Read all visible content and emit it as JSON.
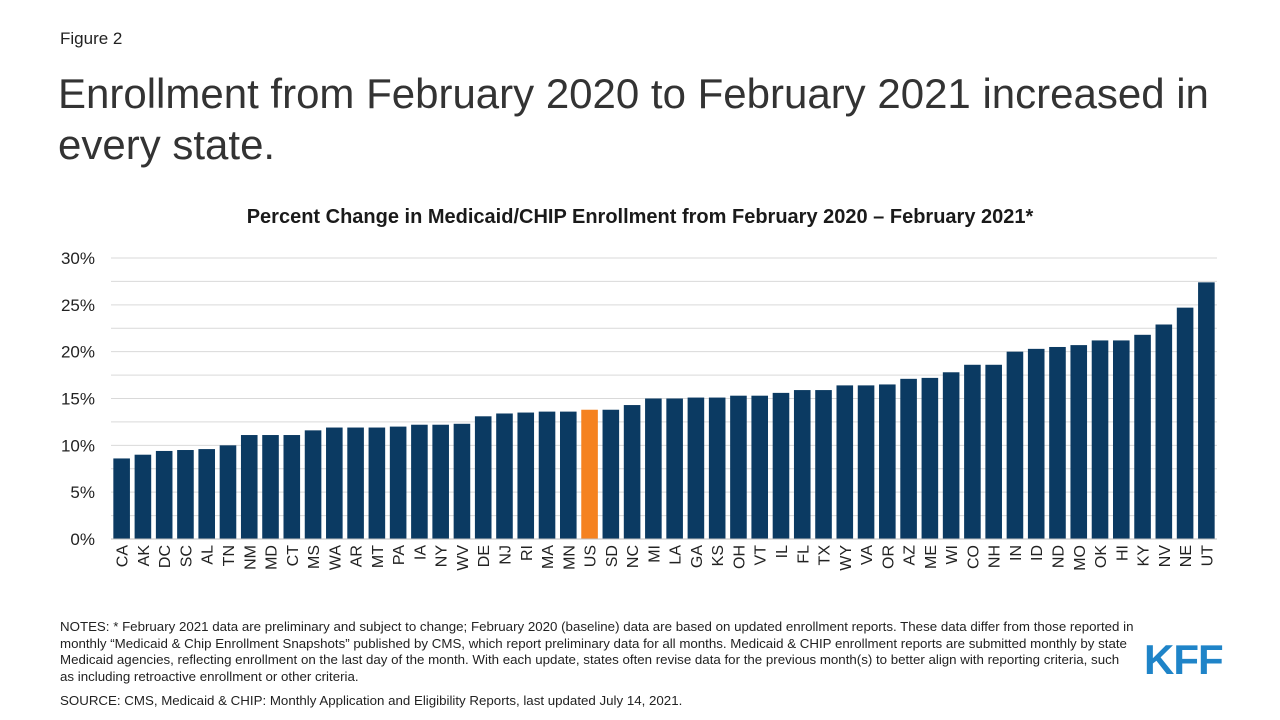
{
  "figure_label": "Figure 2",
  "headline": "Enrollment from February 2020 to February 2021 increased in every state.",
  "notes": "NOTES: * February 2021 data are preliminary and subject to change; February 2020 (baseline) data are based on updated enrollment reports. These data differ from those reported in monthly “Medicaid & Chip Enrollment Snapshots” published by CMS, which report preliminary data for all months. Medicaid & CHIP enrollment reports are submitted monthly by state Medicaid agencies, reflecting enrollment on the last day of the month. With each update, states often revise data for the previous month(s) to better align with reporting criteria, such as including retroactive enrollment or other criteria.",
  "source": "SOURCE: CMS, Medicaid & CHIP: Monthly Application and Eligibility Reports, last updated July 14, 2021.",
  "logo_text": "KFF",
  "colors": {
    "bar": "#0b3a62",
    "highlight": "#f58220",
    "grid": "#d9d9d9",
    "logo": "#1f84c8"
  },
  "chart_data": {
    "type": "bar",
    "title": "Percent Change in Medicaid/CHIP Enrollment from February 2020 – February 2021*",
    "xlabel": "",
    "ylabel": "",
    "ylim": [
      0,
      30
    ],
    "yticks": [
      0,
      5,
      10,
      15,
      20,
      25,
      30
    ],
    "ytick_labels": [
      "0%",
      "5%",
      "10%",
      "15%",
      "20%",
      "25%",
      "30%"
    ],
    "minor_gridlines": true,
    "highlight_category": "US",
    "categories": [
      "CA",
      "AK",
      "DC",
      "SC",
      "AL",
      "TN",
      "NM",
      "MD",
      "CT",
      "MS",
      "WA",
      "AR",
      "MT",
      "PA",
      "IA",
      "NY",
      "WV",
      "DE",
      "NJ",
      "RI",
      "MA",
      "MN",
      "US",
      "SD",
      "NC",
      "MI",
      "LA",
      "GA",
      "KS",
      "OH",
      "VT",
      "IL",
      "FL",
      "TX",
      "WY",
      "VA",
      "OR",
      "AZ",
      "ME",
      "WI",
      "CO",
      "NH",
      "IN",
      "ID",
      "ND",
      "MO",
      "OK",
      "HI",
      "KY",
      "NV",
      "NE",
      "UT"
    ],
    "values": [
      8.6,
      9.0,
      9.4,
      9.5,
      9.6,
      10.0,
      11.1,
      11.1,
      11.1,
      11.6,
      11.9,
      11.9,
      11.9,
      12.0,
      12.2,
      12.2,
      12.3,
      13.1,
      13.4,
      13.5,
      13.6,
      13.6,
      13.8,
      13.8,
      14.3,
      15.0,
      15.0,
      15.1,
      15.1,
      15.3,
      15.3,
      15.6,
      15.9,
      15.9,
      16.4,
      16.4,
      16.5,
      17.1,
      17.2,
      17.8,
      18.6,
      18.6,
      20.0,
      20.3,
      20.5,
      20.7,
      21.2,
      21.2,
      21.8,
      22.9,
      24.7,
      27.4
    ]
  }
}
